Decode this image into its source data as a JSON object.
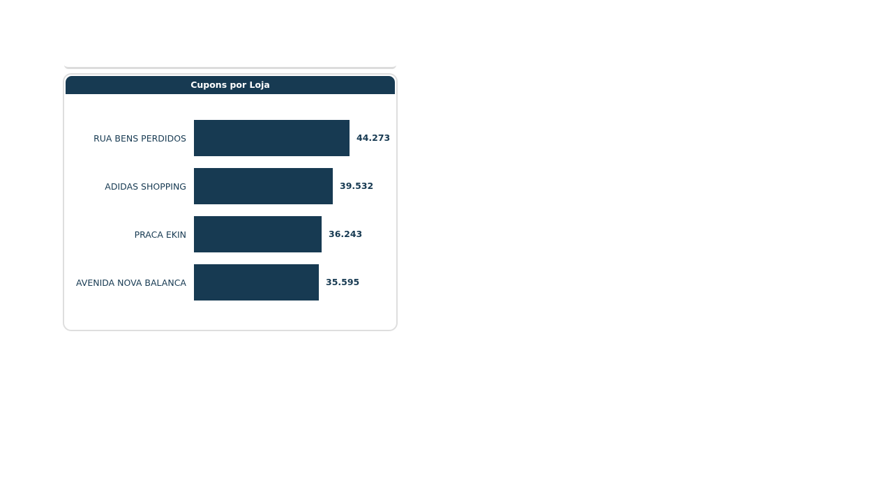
{
  "colors": {
    "bar": "#173a52",
    "header_bg": "#173a52",
    "header_text": "#ffffff",
    "label_text": "#173a52",
    "card_border": "#dedede"
  },
  "chart_data": {
    "type": "bar",
    "orientation": "horizontal",
    "title": "Cupons por Loja",
    "categories": [
      "RUA BENS PERDIDOS",
      "ADIDAS SHOPPING",
      "PRACA EKIN",
      "AVENIDA NOVA BALANCA"
    ],
    "values": [
      44273,
      39532,
      36243,
      35595
    ],
    "value_labels": [
      "44.273",
      "39.532",
      "36.243",
      "35.595"
    ],
    "xlim": [
      0,
      44273
    ],
    "grid": false,
    "legend": "none"
  }
}
